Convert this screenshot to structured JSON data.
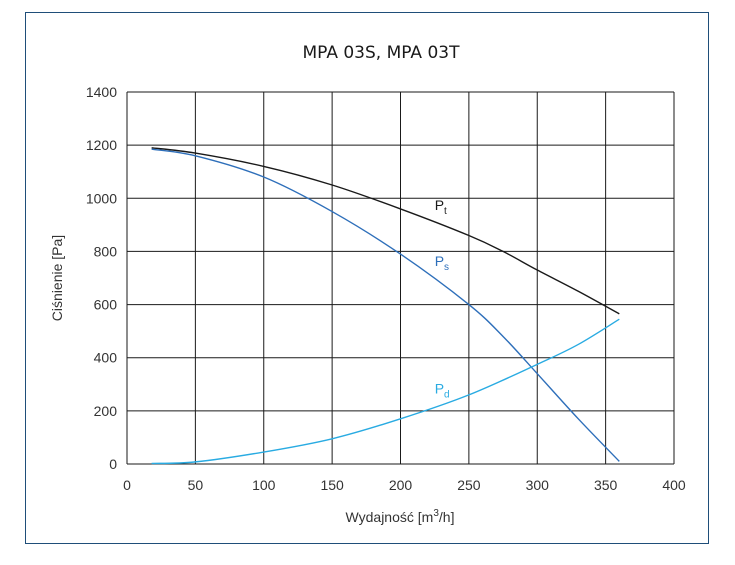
{
  "chart_data": {
    "type": "line",
    "title": "MPA 03S, MPA 03T",
    "xlabel": "Wydajność [m³/h]",
    "xlabel_parts": {
      "main": "Wydajność [m",
      "sup": "3",
      "tail": "/h]"
    },
    "ylabel": "Ciśnienie [Pa]",
    "xlim": [
      0,
      400
    ],
    "ylim": [
      0,
      1400
    ],
    "xticks": [
      0,
      50,
      100,
      150,
      200,
      250,
      300,
      350,
      400
    ],
    "yticks": [
      0,
      200,
      400,
      600,
      800,
      1000,
      1200,
      1400
    ],
    "grid": true,
    "series": [
      {
        "name": "Pt",
        "label_main": "P",
        "label_sub": "t",
        "color": "#1a1a1a",
        "x": [
          18,
          50,
          100,
          150,
          200,
          250,
          275,
          300,
          330,
          360
        ],
        "y": [
          1190,
          1170,
          1120,
          1050,
          960,
          860,
          800,
          730,
          650,
          565
        ]
      },
      {
        "name": "Ps",
        "label_main": "P",
        "label_sub": "s",
        "color": "#2e6fba",
        "x": [
          18,
          50,
          100,
          150,
          200,
          250,
          275,
          300,
          330,
          360
        ],
        "y": [
          1185,
          1160,
          1080,
          950,
          790,
          600,
          480,
          340,
          170,
          10
        ]
      },
      {
        "name": "Pd",
        "label_main": "P",
        "label_sub": "d",
        "color": "#29abe2",
        "x": [
          18,
          50,
          100,
          150,
          200,
          250,
          300,
          330,
          360
        ],
        "y": [
          2,
          8,
          45,
          95,
          170,
          260,
          375,
          450,
          545
        ]
      }
    ]
  }
}
